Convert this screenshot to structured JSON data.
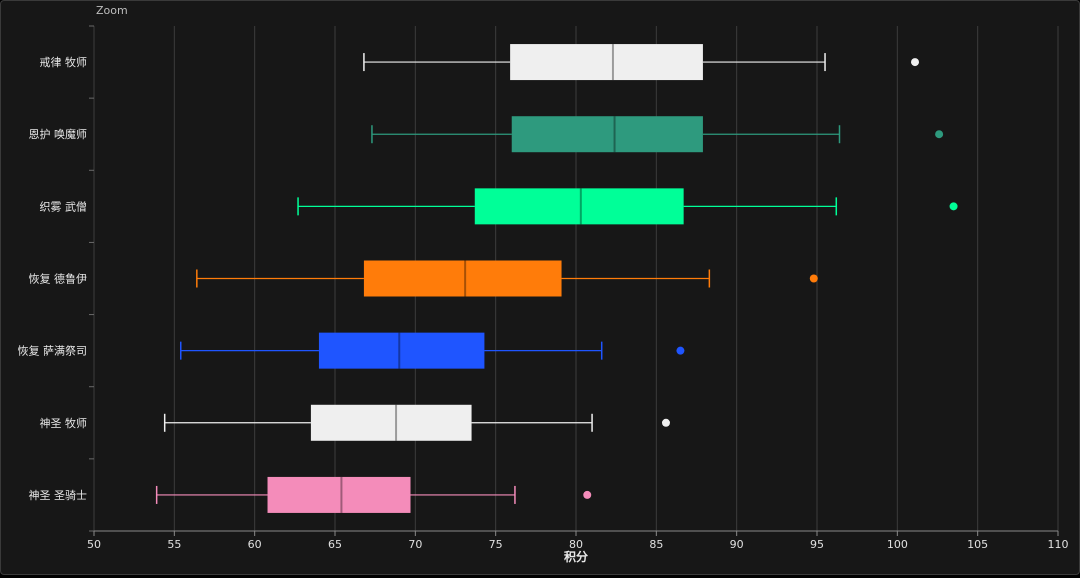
{
  "toolbar": {
    "zoom_label": "Zoom"
  },
  "chart_data": {
    "type": "boxplot",
    "orientation": "horizontal",
    "xlabel": "积分",
    "xlim": [
      50,
      110
    ],
    "xticks": [
      50,
      55,
      60,
      65,
      70,
      75,
      80,
      85,
      90,
      95,
      100,
      105,
      110
    ],
    "grid": true,
    "categories": [
      "戒律 牧师",
      "恩护 唤魔师",
      "织雾 武僧",
      "恢复 德鲁伊",
      "恢复 萨满祭司",
      "神圣 牧师",
      "神圣 圣骑士"
    ],
    "series": [
      {
        "category": "戒律 牧师",
        "color": "#efefef",
        "min": 66.8,
        "q1": 75.9,
        "median": 82.3,
        "q3": 87.9,
        "max": 95.5,
        "outliers": [
          101.1
        ]
      },
      {
        "category": "恩护 唤魔师",
        "color": "#2e9a7e",
        "min": 67.3,
        "q1": 76.0,
        "median": 82.4,
        "q3": 87.9,
        "max": 96.4,
        "outliers": [
          102.6
        ]
      },
      {
        "category": "织雾 武僧",
        "color": "#00ff98",
        "min": 62.7,
        "q1": 73.7,
        "median": 80.3,
        "q3": 86.7,
        "max": 96.2,
        "outliers": [
          103.5
        ]
      },
      {
        "category": "恢复 德鲁伊",
        "color": "#ff7c0a",
        "min": 56.4,
        "q1": 66.8,
        "median": 73.1,
        "q3": 79.1,
        "max": 88.3,
        "outliers": [
          94.8
        ]
      },
      {
        "category": "恢复 萨满祭司",
        "color": "#1f55ff",
        "min": 55.4,
        "q1": 64.0,
        "median": 69.0,
        "q3": 74.3,
        "max": 81.6,
        "outliers": [
          86.5
        ]
      },
      {
        "category": "神圣 牧师",
        "color": "#efefef",
        "min": 54.4,
        "q1": 63.5,
        "median": 68.8,
        "q3": 73.5,
        "max": 81.0,
        "outliers": [
          85.6
        ]
      },
      {
        "category": "神圣 圣骑士",
        "color": "#f48cba",
        "min": 53.9,
        "q1": 60.8,
        "median": 65.4,
        "q3": 69.7,
        "max": 76.2,
        "outliers": [
          80.7
        ]
      }
    ]
  }
}
